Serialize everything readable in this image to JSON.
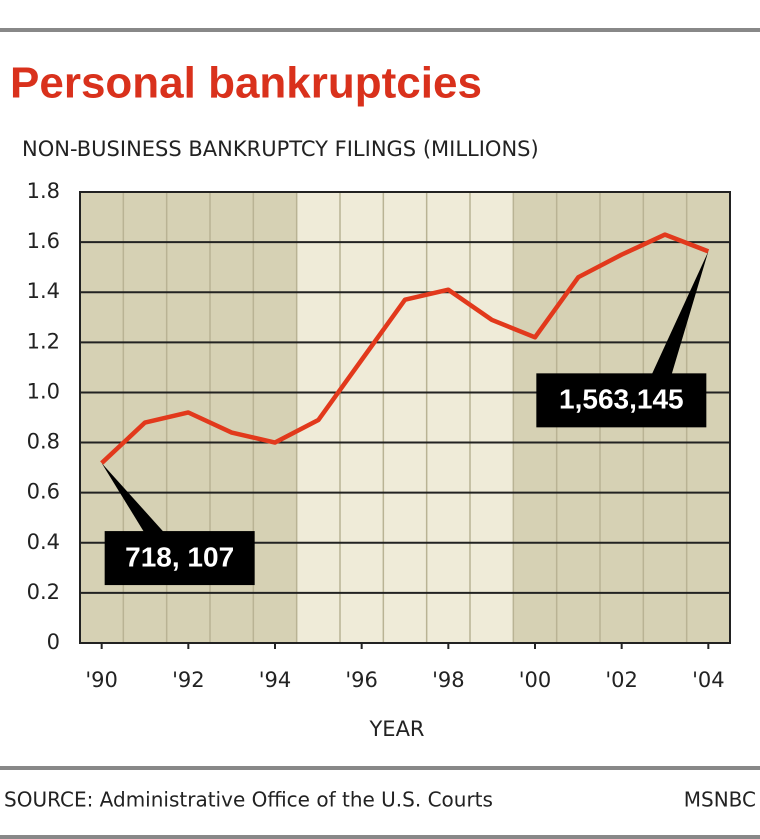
{
  "chart_data": {
    "type": "line",
    "title": "Personal bankruptcies",
    "y_label": "NON-BUSINESS BANKRUPTCY FILINGS (MILLIONS)",
    "x_label": "YEAR",
    "source": "SOURCE: Administrative Office of the U.S. Courts",
    "credit": "MSNBC",
    "x": [
      1990,
      1991,
      1992,
      1993,
      1994,
      1995,
      1996,
      1997,
      1998,
      1999,
      2000,
      2001,
      2002,
      2003,
      2004
    ],
    "series": [
      {
        "name": "Non-business bankruptcy filings",
        "color": "#e2391c",
        "values": [
          0.718107,
          0.88,
          0.92,
          0.84,
          0.8,
          0.89,
          1.13,
          1.37,
          1.41,
          1.29,
          1.22,
          1.46,
          1.55,
          1.63,
          1.563145
        ],
        "value_labels": [
          "718, 107",
          null,
          null,
          null,
          null,
          null,
          null,
          null,
          null,
          null,
          null,
          null,
          null,
          null,
          "1,563,145"
        ]
      }
    ],
    "xlim": [
      1989.5,
      2004.5
    ],
    "xticks": [
      {
        "value": 1990,
        "label": "'90"
      },
      {
        "value": 1992,
        "label": "'92"
      },
      {
        "value": 1994,
        "label": "'94"
      },
      {
        "value": 1996,
        "label": "'96"
      },
      {
        "value": 1998,
        "label": "'98"
      },
      {
        "value": 2000,
        "label": "'00"
      },
      {
        "value": 2002,
        "label": "'02"
      },
      {
        "value": 2004,
        "label": "'04"
      }
    ],
    "ylim": [
      0,
      1.8
    ],
    "yticks": [
      0,
      0.2,
      0.4,
      0.6,
      0.8,
      {
        "value": 1,
        "label": "1.0"
      },
      1.2,
      1.4,
      1.6,
      1.8
    ],
    "grid": true
  }
}
